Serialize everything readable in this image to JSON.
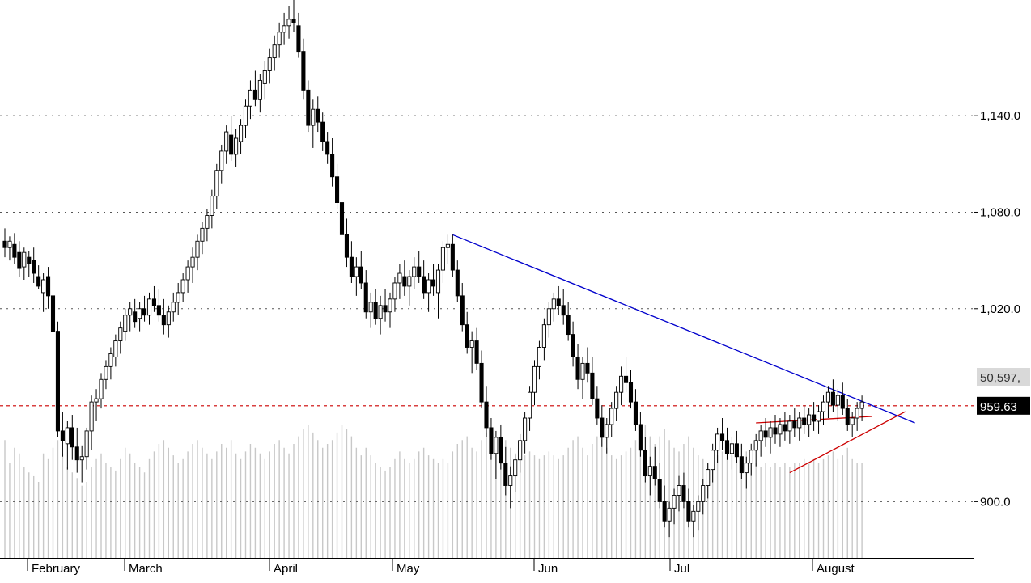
{
  "chart_data": {
    "type": "candlestick",
    "title": "",
    "xlabel": "",
    "ylabel": "",
    "x_ticks": [
      "February",
      "March",
      "April",
      "May",
      "Jun",
      "Jul",
      "August"
    ],
    "y_ticks": [
      "1,140.0",
      "1,080.0",
      "1,020.0",
      "900.0"
    ],
    "ylim": [
      865,
      1212
    ],
    "grid": "horizontal dotted",
    "last_price_label": "959.63",
    "volume_label": "50,597,",
    "reference_line": {
      "value": 959.63,
      "color": "#cc0000",
      "style": "dashed"
    },
    "trendlines": [
      {
        "color": "#0000cc",
        "from": {
          "bar": 93,
          "value": 1066
        },
        "to": {
          "bar": 189,
          "value": 949
        }
      },
      {
        "color": "#cc0000",
        "from": {
          "bar": 156,
          "value": 949
        },
        "to": {
          "bar": 180,
          "value": 953
        }
      },
      {
        "color": "#cc0000",
        "from": {
          "bar": 163,
          "value": 918
        },
        "to": {
          "bar": 187,
          "value": 956
        }
      }
    ],
    "volume_range": [
      0,
      100
    ],
    "candles": [
      [
        1062,
        1070,
        1052,
        1058,
        62
      ],
      [
        1058,
        1065,
        1050,
        1062,
        50
      ],
      [
        1060,
        1067,
        1048,
        1052,
        58
      ],
      [
        1055,
        1062,
        1040,
        1045,
        55
      ],
      [
        1046,
        1058,
        1038,
        1055,
        48
      ],
      [
        1052,
        1056,
        1040,
        1048,
        45
      ],
      [
        1050,
        1058,
        1036,
        1042,
        43
      ],
      [
        1040,
        1047,
        1032,
        1034,
        40
      ],
      [
        1030,
        1042,
        1018,
        1038,
        55
      ],
      [
        1040,
        1046,
        1020,
        1028,
        52
      ],
      [
        1028,
        1038,
        1002,
        1006,
        58
      ],
      [
        1006,
        1012,
        940,
        944,
        62
      ],
      [
        944,
        956,
        928,
        938,
        55
      ],
      [
        936,
        950,
        920,
        946,
        48
      ],
      [
        946,
        954,
        926,
        934,
        45
      ],
      [
        934,
        946,
        918,
        926,
        42
      ],
      [
        926,
        935,
        912,
        928,
        38
      ],
      [
        928,
        946,
        920,
        944,
        40
      ],
      [
        944,
        966,
        932,
        962,
        48
      ],
      [
        962,
        970,
        950,
        964,
        52
      ],
      [
        964,
        980,
        958,
        976,
        55
      ],
      [
        976,
        988,
        970,
        984,
        50
      ],
      [
        984,
        996,
        976,
        992,
        48
      ],
      [
        990,
        1004,
        984,
        1000,
        46
      ],
      [
        1000,
        1012,
        992,
        1008,
        52
      ],
      [
        1006,
        1020,
        1000,
        1016,
        58
      ],
      [
        1016,
        1024,
        1006,
        1020,
        55
      ],
      [
        1018,
        1026,
        1008,
        1012,
        50
      ],
      [
        1014,
        1024,
        1006,
        1020,
        48
      ],
      [
        1020,
        1028,
        1012,
        1016,
        45
      ],
      [
        1016,
        1030,
        1010,
        1026,
        52
      ],
      [
        1026,
        1034,
        1018,
        1022,
        56
      ],
      [
        1022,
        1032,
        1012,
        1016,
        60
      ],
      [
        1016,
        1026,
        1004,
        1010,
        62
      ],
      [
        1010,
        1022,
        1002,
        1018,
        58
      ],
      [
        1018,
        1030,
        1012,
        1024,
        54
      ],
      [
        1024,
        1036,
        1016,
        1030,
        50
      ],
      [
        1030,
        1042,
        1024,
        1038,
        52
      ],
      [
        1038,
        1050,
        1030,
        1046,
        56
      ],
      [
        1046,
        1058,
        1036,
        1052,
        60
      ],
      [
        1052,
        1066,
        1044,
        1062,
        62
      ],
      [
        1062,
        1074,
        1054,
        1070,
        58
      ],
      [
        1070,
        1082,
        1062,
        1078,
        55
      ],
      [
        1078,
        1094,
        1070,
        1090,
        52
      ],
      [
        1090,
        1110,
        1082,
        1106,
        56
      ],
      [
        1106,
        1122,
        1098,
        1118,
        60
      ],
      [
        1118,
        1134,
        1110,
        1130,
        58
      ],
      [
        1128,
        1140,
        1112,
        1116,
        62
      ],
      [
        1116,
        1132,
        1108,
        1126,
        55
      ],
      [
        1124,
        1138,
        1116,
        1134,
        52
      ],
      [
        1134,
        1150,
        1126,
        1146,
        56
      ],
      [
        1146,
        1162,
        1138,
        1156,
        60
      ],
      [
        1156,
        1168,
        1146,
        1150,
        58
      ],
      [
        1150,
        1166,
        1142,
        1162,
        55
      ],
      [
        1160,
        1174,
        1150,
        1168,
        52
      ],
      [
        1168,
        1182,
        1160,
        1176,
        56
      ],
      [
        1176,
        1190,
        1168,
        1184,
        60
      ],
      [
        1184,
        1198,
        1176,
        1192,
        62
      ],
      [
        1192,
        1204,
        1184,
        1196,
        58
      ],
      [
        1196,
        1208,
        1188,
        1200,
        55
      ],
      [
        1200,
        1212,
        1192,
        1198,
        60
      ],
      [
        1196,
        1204,
        1176,
        1180,
        64
      ],
      [
        1180,
        1188,
        1150,
        1156,
        68
      ],
      [
        1156,
        1162,
        1130,
        1134,
        70
      ],
      [
        1134,
        1150,
        1120,
        1144,
        66
      ],
      [
        1144,
        1152,
        1130,
        1136,
        62
      ],
      [
        1136,
        1142,
        1118,
        1124,
        58
      ],
      [
        1124,
        1130,
        1110,
        1116,
        60
      ],
      [
        1116,
        1126,
        1096,
        1102,
        62
      ],
      [
        1102,
        1110,
        1082,
        1086,
        66
      ],
      [
        1086,
        1094,
        1062,
        1066,
        70
      ],
      [
        1066,
        1076,
        1046,
        1052,
        68
      ],
      [
        1052,
        1062,
        1036,
        1040,
        64
      ],
      [
        1040,
        1052,
        1028,
        1046,
        58
      ],
      [
        1046,
        1056,
        1032,
        1036,
        54
      ],
      [
        1036,
        1044,
        1014,
        1018,
        58
      ],
      [
        1018,
        1030,
        1008,
        1024,
        54
      ],
      [
        1024,
        1032,
        1010,
        1014,
        50
      ],
      [
        1014,
        1028,
        1004,
        1022,
        48
      ],
      [
        1022,
        1032,
        1012,
        1018,
        46
      ],
      [
        1018,
        1030,
        1008,
        1026,
        48
      ],
      [
        1026,
        1040,
        1018,
        1036,
        52
      ],
      [
        1036,
        1048,
        1026,
        1042,
        56
      ],
      [
        1040,
        1050,
        1028,
        1034,
        52
      ],
      [
        1034,
        1044,
        1022,
        1040,
        50
      ],
      [
        1040,
        1052,
        1032,
        1046,
        52
      ],
      [
        1046,
        1056,
        1036,
        1040,
        56
      ],
      [
        1040,
        1050,
        1026,
        1030,
        58
      ],
      [
        1030,
        1042,
        1018,
        1038,
        54
      ],
      [
        1038,
        1048,
        1028,
        1034,
        52
      ],
      [
        1030,
        1048,
        1014,
        1044,
        50
      ],
      [
        1044,
        1062,
        1036,
        1058,
        52
      ],
      [
        1058,
        1066,
        1048,
        1060,
        50
      ],
      [
        1060,
        1066,
        1040,
        1044,
        56
      ],
      [
        1044,
        1050,
        1024,
        1028,
        60
      ],
      [
        1028,
        1036,
        1006,
        1010,
        62
      ],
      [
        1010,
        1018,
        992,
        996,
        64
      ],
      [
        996,
        1006,
        980,
        1000,
        58
      ],
      [
        1000,
        1008,
        982,
        986,
        56
      ],
      [
        986,
        994,
        958,
        962,
        62
      ],
      [
        962,
        972,
        940,
        946,
        66
      ],
      [
        946,
        952,
        926,
        930,
        68
      ],
      [
        930,
        944,
        914,
        940,
        60
      ],
      [
        940,
        948,
        920,
        924,
        58
      ],
      [
        924,
        934,
        904,
        910,
        62
      ],
      [
        910,
        922,
        896,
        916,
        58
      ],
      [
        916,
        930,
        906,
        926,
        54
      ],
      [
        926,
        942,
        918,
        938,
        52
      ],
      [
        938,
        956,
        930,
        952,
        54
      ],
      [
        952,
        972,
        944,
        968,
        56
      ],
      [
        968,
        988,
        960,
        984,
        54
      ],
      [
        984,
        1000,
        976,
        996,
        52
      ],
      [
        996,
        1014,
        988,
        1010,
        54
      ],
      [
        1010,
        1024,
        1002,
        1020,
        56
      ],
      [
        1020,
        1030,
        1012,
        1026,
        54
      ],
      [
        1026,
        1034,
        1016,
        1022,
        52
      ],
      [
        1022,
        1032,
        1010,
        1016,
        54
      ],
      [
        1016,
        1024,
        1000,
        1004,
        58
      ],
      [
        1004,
        1012,
        984,
        990,
        62
      ],
      [
        990,
        998,
        970,
        976,
        64
      ],
      [
        976,
        990,
        964,
        986,
        58
      ],
      [
        986,
        996,
        974,
        980,
        54
      ],
      [
        980,
        990,
        960,
        964,
        60
      ],
      [
        964,
        972,
        948,
        952,
        64
      ],
      [
        952,
        960,
        934,
        940,
        66
      ],
      [
        940,
        952,
        930,
        948,
        58
      ],
      [
        948,
        962,
        940,
        958,
        54
      ],
      [
        958,
        972,
        950,
        968,
        52
      ],
      [
        968,
        984,
        960,
        978,
        54
      ],
      [
        978,
        990,
        968,
        974,
        56
      ],
      [
        974,
        982,
        958,
        962,
        58
      ],
      [
        962,
        970,
        944,
        948,
        62
      ],
      [
        948,
        956,
        928,
        932,
        66
      ],
      [
        932,
        940,
        912,
        916,
        70
      ],
      [
        916,
        928,
        904,
        922,
        64
      ],
      [
        922,
        934,
        910,
        914,
        60
      ],
      [
        914,
        924,
        896,
        900,
        64
      ],
      [
        900,
        910,
        884,
        888,
        68
      ],
      [
        888,
        900,
        878,
        896,
        62
      ],
      [
        896,
        908,
        886,
        904,
        58
      ],
      [
        904,
        916,
        894,
        910,
        56
      ],
      [
        910,
        918,
        896,
        900,
        60
      ],
      [
        900,
        908,
        884,
        888,
        64
      ],
      [
        888,
        898,
        878,
        894,
        58
      ],
      [
        894,
        904,
        882,
        900,
        54
      ],
      [
        900,
        914,
        892,
        910,
        52
      ],
      [
        910,
        924,
        902,
        920,
        50
      ],
      [
        920,
        936,
        912,
        932,
        52
      ],
      [
        932,
        946,
        924,
        942,
        54
      ],
      [
        942,
        952,
        932,
        938,
        56
      ],
      [
        938,
        946,
        926,
        930,
        58
      ],
      [
        930,
        940,
        920,
        936,
        54
      ],
      [
        936,
        944,
        924,
        928,
        56
      ],
      [
        928,
        936,
        914,
        918,
        60
      ],
      [
        918,
        928,
        908,
        924,
        56
      ],
      [
        924,
        936,
        916,
        932,
        52
      ],
      [
        932,
        942,
        922,
        938,
        50
      ],
      [
        938,
        948,
        928,
        944,
        48
      ],
      [
        944,
        952,
        934,
        940,
        50
      ],
      [
        940,
        950,
        930,
        946,
        48
      ],
      [
        946,
        954,
        936,
        942,
        50
      ],
      [
        942,
        952,
        934,
        948,
        48
      ],
      [
        948,
        956,
        938,
        944,
        50
      ],
      [
        944,
        954,
        936,
        950,
        48
      ],
      [
        950,
        958,
        940,
        946,
        50
      ],
      [
        946,
        956,
        938,
        952,
        50
      ],
      [
        952,
        960,
        942,
        948,
        52
      ],
      [
        948,
        958,
        940,
        954,
        50
      ],
      [
        954,
        962,
        944,
        950,
        52
      ],
      [
        950,
        960,
        942,
        956,
        50
      ],
      [
        956,
        966,
        948,
        962,
        52
      ],
      [
        962,
        972,
        952,
        968,
        54
      ],
      [
        968,
        976,
        956,
        960,
        56
      ],
      [
        960,
        970,
        950,
        966,
        52
      ],
      [
        966,
        974,
        954,
        958,
        54
      ],
      [
        958,
        964,
        944,
        948,
        58
      ],
      [
        948,
        956,
        940,
        952,
        52
      ],
      [
        952,
        962,
        944,
        958,
        50
      ],
      [
        958,
        966,
        950,
        962,
        50
      ]
    ]
  }
}
